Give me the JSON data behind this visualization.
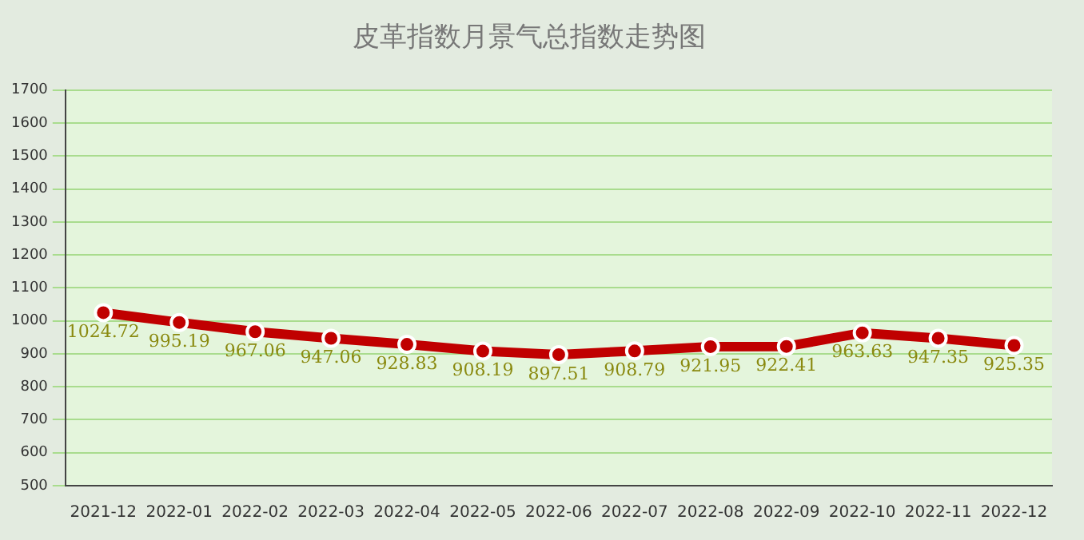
{
  "chart_data": {
    "type": "line",
    "title": "皮革指数月景气总指数走势图",
    "categories": [
      "2021-12",
      "2022-01",
      "2022-02",
      "2022-03",
      "2022-04",
      "2022-05",
      "2022-06",
      "2022-07",
      "2022-08",
      "2022-09",
      "2022-10",
      "2022-11",
      "2022-12"
    ],
    "series": [
      {
        "color": "#c00000",
        "values": [
          1024.72,
          995.19,
          967.06,
          947.06,
          928.83,
          908.19,
          897.51,
          908.79,
          921.95,
          922.41,
          963.63,
          947.35,
          925.35
        ]
      }
    ],
    "ylim": [
      500,
      1700
    ],
    "yticks": [
      500,
      600,
      700,
      800,
      900,
      1000,
      1100,
      1200,
      1300,
      1400,
      1500,
      1600,
      1700
    ],
    "grid": "y",
    "legend": false,
    "marker": "circle",
    "data_labels": true
  }
}
